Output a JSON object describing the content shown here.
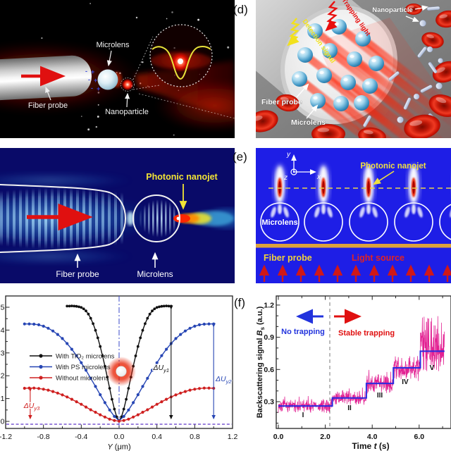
{
  "panel_a": {
    "labels": {
      "microlens": "Microlens",
      "fiber_probe": "Fiber probe",
      "nanoparticle": "Nanoparticle"
    }
  },
  "panel_d": {
    "tag": "(d)",
    "labels": {
      "nanoparticle": "Nanoparticle",
      "fiber_probe": "Fiber probe",
      "microlens": "Microlens",
      "trapping_light": "Trapping light",
      "detection_signal": "Detection signal"
    }
  },
  "panel_b": {
    "labels": {
      "photonic_nanojet": "Photonic nanojet",
      "fiber_probe": "Fiber probe",
      "microlens": "Microlens"
    }
  },
  "panel_e": {
    "tag": "(e)",
    "labels": {
      "photonic_nanojet": "Photonic nanojet",
      "microlens": "Microlens",
      "fiber_probe": "Fiber probe",
      "light_source": "Light source",
      "axis_x": "x",
      "axis_y": "y",
      "axis_z": "z"
    }
  },
  "panel_f": {
    "tag": "(f)"
  },
  "colors": {
    "accent_red": "#e01010",
    "accent_yellow": "#f2e435",
    "panel_e_blue": "#1e1ee6",
    "fiber_bar_orange": "#dda23c",
    "signal_magenta": "#e0148c",
    "step_blue": "#2a2ae0"
  },
  "chart_data": [
    {
      "type": "line",
      "title": "",
      "xlabel_parts": [
        "Y",
        " (μm)"
      ],
      "ylabel": "",
      "xlim": [
        -1.2,
        1.2
      ],
      "ylim": [
        -0.35,
        5.5
      ],
      "xticks": [
        "-1.2",
        "-0.8",
        "-0.4",
        "0.0",
        "0.4",
        "0.8",
        "1.2"
      ],
      "yticks": [
        "0",
        "1",
        "2",
        "3",
        "4",
        "5"
      ],
      "grid": false,
      "legend_position": "center-left",
      "center_dashdot_x": 0.0,
      "baseline_dash_y": -0.12,
      "series": [
        {
          "name": "With TiO₂ microlens",
          "color": "#111111",
          "x_start": -0.55,
          "x_step": 0.025,
          "y": [
            5.05,
            5.05,
            5.06,
            5.05,
            5.04,
            5.02,
            4.99,
            4.93,
            4.84,
            4.7,
            4.52,
            4.28,
            3.99,
            3.66,
            3.28,
            2.87,
            2.42,
            1.94,
            1.45,
            0.97,
            0.54,
            0.2,
            0.03,
            0.2,
            0.54,
            0.97,
            1.45,
            1.94,
            2.42,
            2.87,
            3.28,
            3.66,
            3.99,
            4.28,
            4.52,
            4.7,
            4.84,
            4.93,
            4.99,
            5.02,
            5.04,
            5.05,
            5.06,
            5.05,
            5.05
          ]
        },
        {
          "name": "With PS microlens",
          "color": "#2746b4",
          "x_start": -1.0,
          "x_step": 0.05,
          "y": [
            4.27,
            4.27,
            4.26,
            4.23,
            4.17,
            4.08,
            3.96,
            3.81,
            3.63,
            3.41,
            3.16,
            2.88,
            2.57,
            2.24,
            1.89,
            1.53,
            1.17,
            0.82,
            0.5,
            0.22,
            0.03,
            0.22,
            0.5,
            0.82,
            1.17,
            1.53,
            1.89,
            2.24,
            2.57,
            2.88,
            3.16,
            3.41,
            3.63,
            3.81,
            3.96,
            4.08,
            4.17,
            4.23,
            4.26,
            4.27,
            4.27
          ]
        },
        {
          "name": "Without microlens",
          "color": "#cf2020",
          "x_start": -1.0,
          "x_step": 0.05,
          "y": [
            1.45,
            1.46,
            1.46,
            1.44,
            1.41,
            1.37,
            1.31,
            1.24,
            1.16,
            1.07,
            0.97,
            0.86,
            0.75,
            0.63,
            0.51,
            0.4,
            0.29,
            0.19,
            0.1,
            0.04,
            0.01,
            0.04,
            0.1,
            0.19,
            0.29,
            0.4,
            0.51,
            0.63,
            0.75,
            0.86,
            0.97,
            1.07,
            1.16,
            1.24,
            1.31,
            1.37,
            1.41,
            1.44,
            1.46,
            1.46,
            1.45
          ]
        }
      ],
      "annotations": [
        {
          "text_main": "ΔU",
          "text_sub": "y1",
          "color": "#111111",
          "arrow_x": 0.55,
          "arrow_y": [
            0.0,
            5.05
          ]
        },
        {
          "text_main": "ΔU",
          "text_sub": "y2",
          "color": "#2746b4",
          "arrow_x": 1.0,
          "arrow_y": [
            0.0,
            4.27
          ]
        },
        {
          "text_main": "ΔU",
          "text_sub": "y3",
          "color": "#cf2020",
          "arrow_x": -0.94,
          "arrow_y": [
            0.0,
            1.45
          ]
        }
      ]
    },
    {
      "type": "line",
      "title": "",
      "ylabel_parts": [
        "Backscattering signal ",
        "B",
        "s",
        " (a.u.)"
      ],
      "xlabel_parts": [
        "Time ",
        "t",
        " (s)"
      ],
      "xlim": [
        0,
        7.08
      ],
      "ylim": [
        0.05,
        1.28
      ],
      "xticks": [
        "0.0",
        "2.0",
        "4.0",
        "6.0"
      ],
      "yticks": [
        "0.3",
        "0.6",
        "0.9",
        "1.2"
      ],
      "grid": false,
      "signal_color": "#e0148c",
      "step_color": "#2a2ae0",
      "regions": {
        "no_trapping": "No trapping",
        "stable_trapping": "Stable trapping",
        "divider_t": 2.2
      },
      "steps": [
        {
          "label": "I",
          "t": [
            0.0,
            2.3
          ],
          "value": 0.26,
          "noise": 0.05
        },
        {
          "label": "II",
          "t": [
            2.3,
            3.75
          ],
          "value": 0.335,
          "noise": 0.055
        },
        {
          "label": "III",
          "t": [
            3.75,
            4.9
          ],
          "value": 0.47,
          "noise": 0.075
        },
        {
          "label": "IV",
          "t": [
            4.9,
            6.05
          ],
          "value": 0.615,
          "noise": 0.095
        },
        {
          "label": "V",
          "t": [
            6.05,
            7.08
          ],
          "value": 0.77,
          "noise": 0.165
        }
      ]
    }
  ]
}
